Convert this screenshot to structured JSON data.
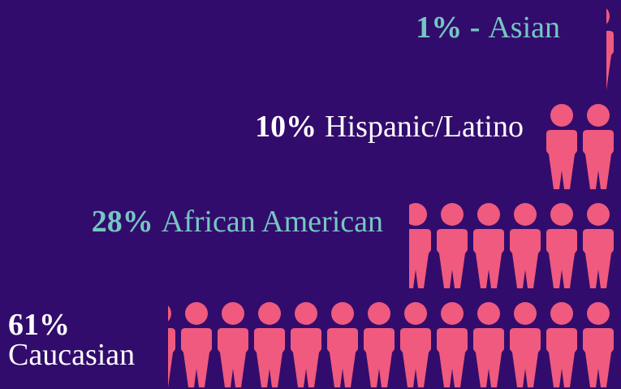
{
  "chart_data": {
    "type": "pictogram",
    "categories": [
      "Asian",
      "Hispanic/Latino",
      "African American",
      "Caucasian"
    ],
    "values": [
      1,
      10,
      28,
      61
    ],
    "value_labels": [
      "1% -",
      "10%",
      "28%",
      "61%"
    ],
    "label_colors": [
      "#74c7c2",
      "#ffffff",
      "#74c7c2",
      "#ffffff"
    ],
    "color": "#ef5a7e",
    "background": "#320c6c"
  }
}
